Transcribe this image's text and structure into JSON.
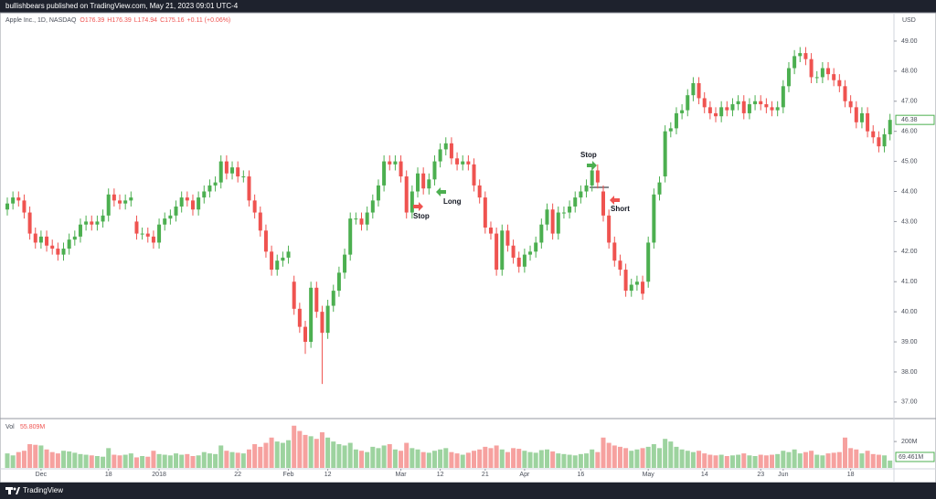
{
  "header": {
    "publisher": "bullishbears published on TradingView.com, May 21, 2023 09:01 UTC-4",
    "brand": "TradingView"
  },
  "chart_data": {
    "type": "candlestick",
    "title": "Apple Inc., 1D, NASDAQ",
    "legend_values": [
      "O176.39",
      "H176.39",
      "L174.94",
      "C175.16",
      "+0.11 (+0.06%)"
    ],
    "currency": "USD",
    "up_color": "#4caf50",
    "down_color": "#ef5350",
    "open": [
      43.4,
      43.6,
      43.8,
      43.7,
      43.3,
      42.6,
      42.3,
      42.5,
      42.2,
      42.1,
      41.9,
      42.1,
      42.4,
      42.5,
      42.9,
      43.0,
      42.9,
      43.0,
      43.2,
      43.9,
      43.7,
      43.6,
      43.7,
      43.0,
      42.6,
      42.6,
      42.5,
      42.3,
      42.9,
      43.1,
      43.2,
      43.5,
      43.8,
      43.7,
      43.4,
      43.8,
      44.0,
      44.2,
      44.3,
      45.0,
      44.6,
      44.8,
      44.5,
      44.5,
      43.7,
      43.3,
      42.7,
      42.0,
      41.4,
      41.7,
      41.8,
      41.0,
      40.1,
      39.5,
      39.0,
      40.8,
      40.0,
      39.3,
      40.2,
      40.7,
      41.3,
      41.9,
      43.1,
      43.1,
      42.9,
      43.3,
      43.7,
      44.2,
      45.0,
      44.9,
      45.0,
      44.5,
      43.3,
      44.0,
      44.6,
      44.1,
      44.4,
      45.0,
      45.4,
      45.6,
      45.1,
      44.9,
      45.0,
      44.9,
      44.2,
      43.8,
      42.8,
      42.6,
      41.4,
      42.7,
      42.2,
      41.8,
      41.5,
      41.9,
      42.0,
      42.3,
      42.9,
      43.4,
      42.6,
      43.3,
      43.3,
      43.5,
      43.8,
      44.0,
      44.2,
      44.7,
      44.0,
      43.2,
      42.3,
      41.7,
      41.4,
      40.7,
      40.9,
      41.0,
      41.0,
      42.3,
      43.9,
      44.5,
      46.0,
      46.1,
      46.6,
      46.7,
      47.2,
      47.6,
      47.1,
      46.8,
      46.6,
      46.5,
      46.8,
      46.7,
      46.9,
      47.0,
      46.6,
      46.9,
      47.0,
      46.9,
      46.8,
      46.7,
      46.8,
      47.5,
      48.1,
      48.5,
      48.6,
      48.4,
      47.8,
      47.8,
      48.1,
      47.9,
      47.7,
      47.5,
      47.0,
      46.8,
      46.3,
      46.6,
      46.0,
      45.8,
      45.5,
      45.9
    ],
    "high": [
      43.8,
      44.0,
      44.0,
      43.9,
      43.5,
      42.8,
      42.7,
      42.7,
      42.4,
      42.3,
      42.3,
      42.6,
      42.7,
      43.1,
      43.2,
      43.2,
      43.2,
      43.4,
      44.1,
      44.1,
      43.9,
      43.9,
      44.0,
      43.2,
      42.8,
      42.8,
      42.7,
      43.1,
      43.3,
      43.4,
      43.7,
      44.0,
      44.0,
      43.9,
      44.0,
      44.2,
      44.4,
      44.5,
      45.2,
      45.2,
      45.0,
      45.0,
      44.7,
      44.7,
      43.9,
      43.5,
      42.9,
      42.2,
      41.9,
      42.0,
      42.2,
      41.2,
      40.3,
      39.7,
      41.0,
      41.0,
      40.2,
      40.4,
      40.9,
      41.5,
      42.1,
      43.3,
      43.3,
      43.3,
      43.5,
      43.9,
      44.4,
      45.2,
      45.2,
      45.2,
      45.2,
      44.7,
      44.2,
      44.8,
      44.8,
      44.6,
      45.2,
      45.6,
      45.8,
      45.8,
      45.3,
      45.2,
      45.2,
      45.1,
      44.4,
      44.0,
      43.0,
      42.8,
      42.9,
      42.9,
      42.4,
      42.0,
      42.1,
      42.2,
      42.5,
      43.1,
      43.6,
      43.6,
      43.5,
      43.5,
      43.7,
      44.0,
      44.2,
      44.4,
      44.9,
      44.9,
      44.2,
      43.4,
      42.5,
      41.9,
      41.6,
      41.1,
      41.2,
      41.2,
      42.5,
      44.1,
      44.5,
      46.2,
      46.3,
      46.8,
      46.9,
      47.4,
      47.8,
      47.8,
      47.3,
      47.0,
      46.8,
      47.0,
      47.0,
      47.1,
      47.2,
      47.2,
      47.1,
      47.2,
      47.2,
      47.1,
      47.0,
      47.0,
      47.7,
      48.3,
      48.7,
      48.8,
      48.8,
      48.6,
      48.0,
      48.3,
      48.3,
      48.1,
      47.9,
      47.7,
      47.2,
      47.0,
      46.8,
      46.8,
      46.2,
      46.0,
      46.1,
      46.58
    ],
    "low": [
      43.2,
      43.4,
      43.5,
      43.1,
      42.4,
      42.1,
      42.1,
      42.0,
      41.9,
      41.7,
      41.7,
      41.9,
      42.2,
      42.3,
      42.7,
      42.7,
      42.7,
      42.8,
      43.0,
      43.5,
      43.4,
      43.4,
      43.5,
      42.4,
      42.4,
      42.3,
      42.1,
      42.1,
      42.7,
      42.9,
      43.0,
      43.3,
      43.5,
      43.2,
      43.2,
      43.6,
      43.8,
      44.0,
      44.1,
      44.4,
      44.4,
      44.3,
      44.3,
      43.5,
      43.1,
      42.5,
      41.8,
      41.2,
      41.2,
      41.5,
      41.6,
      39.9,
      39.3,
      38.6,
      38.8,
      39.8,
      37.6,
      39.1,
      40.0,
      40.5,
      41.1,
      41.7,
      42.9,
      42.7,
      42.7,
      43.1,
      43.5,
      44.0,
      44.7,
      44.7,
      44.3,
      43.1,
      43.1,
      43.8,
      43.9,
      43.9,
      44.2,
      44.8,
      45.2,
      44.9,
      44.7,
      44.7,
      44.7,
      44.0,
      43.6,
      42.6,
      42.4,
      41.2,
      41.2,
      42.0,
      41.6,
      41.3,
      41.3,
      41.7,
      41.8,
      42.1,
      42.7,
      42.4,
      42.4,
      43.1,
      43.1,
      43.3,
      43.6,
      43.8,
      44.0,
      44.1,
      43.0,
      42.1,
      41.5,
      41.2,
      40.5,
      40.5,
      40.7,
      40.4,
      40.8,
      42.1,
      43.7,
      44.3,
      45.8,
      45.9,
      46.4,
      46.5,
      47.0,
      46.9,
      46.6,
      46.4,
      46.3,
      46.3,
      46.5,
      46.5,
      46.7,
      46.4,
      46.4,
      46.7,
      46.7,
      46.6,
      46.5,
      46.5,
      46.6,
      47.3,
      47.9,
      48.3,
      48.2,
      47.6,
      47.6,
      47.6,
      47.7,
      47.5,
      47.3,
      46.8,
      46.6,
      46.1,
      46.1,
      45.8,
      45.6,
      45.3,
      45.3,
      45.7
    ],
    "close": [
      43.6,
      43.8,
      43.7,
      43.3,
      42.6,
      42.3,
      42.5,
      42.2,
      42.1,
      41.9,
      42.1,
      42.4,
      42.5,
      42.9,
      43.0,
      42.9,
      43.0,
      43.2,
      43.9,
      43.7,
      43.6,
      43.7,
      43.8,
      42.6,
      42.6,
      42.5,
      42.3,
      42.9,
      43.1,
      43.2,
      43.5,
      43.8,
      43.7,
      43.4,
      43.8,
      44.0,
      44.2,
      44.3,
      45.0,
      44.6,
      44.8,
      44.5,
      44.5,
      43.7,
      43.3,
      42.7,
      42.0,
      41.4,
      41.7,
      41.8,
      42.0,
      40.1,
      39.5,
      39.0,
      40.8,
      40.0,
      39.3,
      40.2,
      40.7,
      41.3,
      41.9,
      43.1,
      43.1,
      42.9,
      43.3,
      43.7,
      44.2,
      45.0,
      44.9,
      45.0,
      44.5,
      43.3,
      44.0,
      44.6,
      44.1,
      44.4,
      45.0,
      45.4,
      45.6,
      45.1,
      44.9,
      45.0,
      44.9,
      44.2,
      43.8,
      42.8,
      42.6,
      41.4,
      42.7,
      42.2,
      41.8,
      41.5,
      41.9,
      42.0,
      42.3,
      42.9,
      43.4,
      42.6,
      43.3,
      43.3,
      43.5,
      43.8,
      44.0,
      44.2,
      44.7,
      44.3,
      43.2,
      42.3,
      41.7,
      41.4,
      40.7,
      40.9,
      41.0,
      40.6,
      42.3,
      43.9,
      44.3,
      46.0,
      46.1,
      46.6,
      46.7,
      47.2,
      47.6,
      47.1,
      46.8,
      46.6,
      46.5,
      46.8,
      46.7,
      46.9,
      47.0,
      46.6,
      46.9,
      47.0,
      46.9,
      46.8,
      46.7,
      46.8,
      47.5,
      48.1,
      48.5,
      48.6,
      48.4,
      47.8,
      47.8,
      48.1,
      47.9,
      47.7,
      47.5,
      47.0,
      46.8,
      46.3,
      46.6,
      46.0,
      45.8,
      45.5,
      45.9,
      46.38
    ],
    "xlim": [
      -1.3,
      157.7
    ],
    "xticks": [
      {
        "value": 6,
        "label": "Dec"
      },
      {
        "value": 18,
        "label": "18"
      },
      {
        "value": 27,
        "label": "2018"
      },
      {
        "value": 41,
        "label": "22"
      },
      {
        "value": 50,
        "label": "Feb"
      },
      {
        "value": 57,
        "label": "12"
      },
      {
        "value": 70,
        "label": "Mar"
      },
      {
        "value": 77,
        "label": "12"
      },
      {
        "value": 85,
        "label": "21"
      },
      {
        "value": 92,
        "label": "Apr"
      },
      {
        "value": 102,
        "label": "16"
      },
      {
        "value": 114,
        "label": "May"
      },
      {
        "value": 124,
        "label": "14"
      },
      {
        "value": 134,
        "label": "23"
      },
      {
        "value": 138,
        "label": "Jun"
      },
      {
        "value": 150,
        "label": "18"
      }
    ],
    "ylim": [
      36.48,
      49.94
    ],
    "yticks": [
      {
        "value": 37,
        "label": "37.00"
      },
      {
        "value": 38,
        "label": "38.00"
      },
      {
        "value": 39,
        "label": "39.00"
      },
      {
        "value": 40,
        "label": "40.00"
      },
      {
        "value": 41,
        "label": "41.00"
      },
      {
        "value": 42,
        "label": "42.00"
      },
      {
        "value": 43,
        "label": "43.00"
      },
      {
        "value": 44,
        "label": "44.00"
      },
      {
        "value": 45,
        "label": "45.00"
      },
      {
        "value": 46,
        "label": "46.00"
      },
      {
        "value": 47,
        "label": "47.00"
      },
      {
        "value": 48,
        "label": "48.00"
      },
      {
        "value": 49,
        "label": "49.00"
      }
    ],
    "annotations": [
      "Stop",
      "Long",
      "Stop",
      "Short"
    ],
    "volume": {
      "name": "Vol",
      "last_label": "55.809M",
      "average_label": "69.461M",
      "ylim": [
        0,
        360
      ],
      "yticks": [
        {
          "value": 200,
          "label": "200M"
        }
      ],
      "values": [
        110,
        95,
        120,
        130,
        180,
        175,
        170,
        140,
        120,
        110,
        130,
        125,
        115,
        105,
        100,
        95,
        90,
        85,
        150,
        100,
        95,
        100,
        110,
        80,
        90,
        85,
        130,
        105,
        100,
        95,
        110,
        100,
        105,
        90,
        95,
        120,
        110,
        105,
        170,
        130,
        120,
        115,
        110,
        140,
        180,
        160,
        190,
        230,
        200,
        190,
        210,
        320,
        280,
        250,
        240,
        220,
        270,
        230,
        200,
        180,
        170,
        190,
        140,
        130,
        120,
        160,
        150,
        170,
        180,
        140,
        130,
        190,
        150,
        140,
        120,
        115,
        130,
        140,
        150,
        120,
        110,
        100,
        115,
        130,
        140,
        160,
        150,
        170,
        140,
        120,
        150,
        145,
        130,
        120,
        115,
        135,
        140,
        125,
        110,
        105,
        100,
        95,
        105,
        110,
        140,
        120,
        230,
        190,
        170,
        160,
        150,
        130,
        140,
        150,
        160,
        180,
        150,
        220,
        200,
        160,
        140,
        130,
        120,
        130,
        110,
        100,
        95,
        100,
        90,
        95,
        100,
        110,
        95,
        90,
        100,
        95,
        100,
        105,
        130,
        120,
        140,
        110,
        120,
        130,
        100,
        95,
        110,
        115,
        120,
        230,
        150,
        140,
        110,
        130,
        105,
        100,
        95,
        55.809
      ]
    }
  }
}
